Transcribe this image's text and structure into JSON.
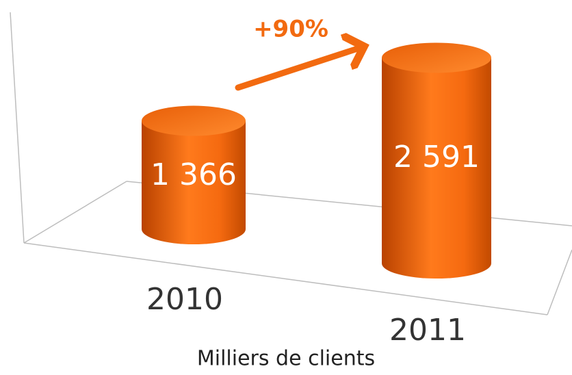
{
  "chart_data": {
    "type": "bar",
    "categories": [
      "2010",
      "2011"
    ],
    "values": [
      1366,
      2591
    ],
    "value_labels": [
      "1 366",
      "2 591"
    ],
    "color": "#f06a10",
    "annotation": "+90%",
    "x_label": "Milliers de clients"
  }
}
